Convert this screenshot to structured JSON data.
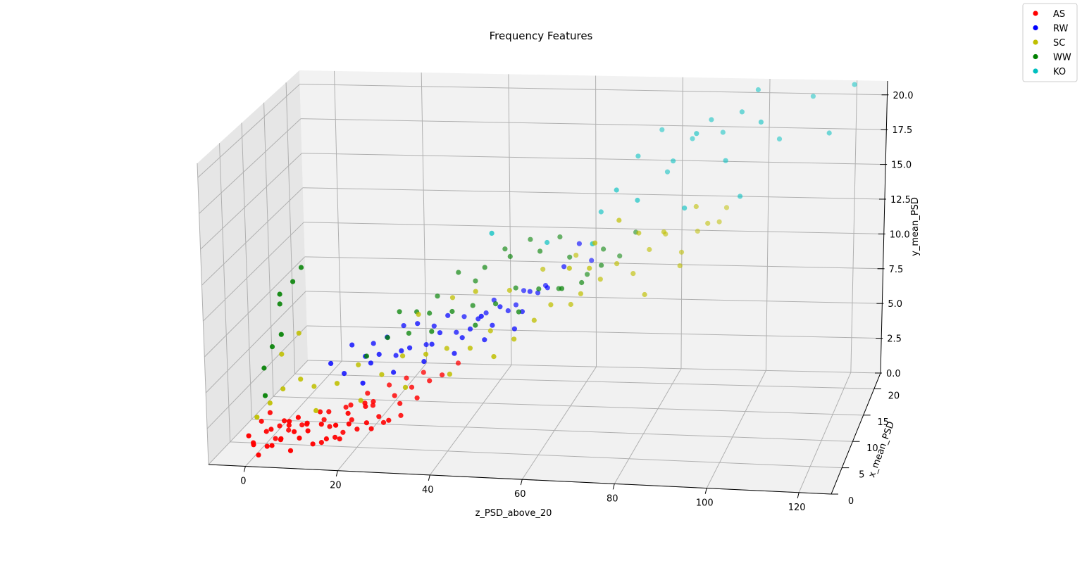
{
  "chart_data": {
    "type": "scatter",
    "title": "Frequency Features",
    "xlabel": "z_PSD_above_20",
    "ylabel": "x_mean_PSD",
    "zlabel": "y_mean_PSD",
    "x_ticks": [
      "0",
      "20",
      "40",
      "60",
      "80",
      "100",
      "120"
    ],
    "y_ticks": [
      "0",
      "5",
      "10",
      "15",
      "20"
    ],
    "z_ticks": [
      "0.0",
      "2.5",
      "5.0",
      "7.5",
      "10.0",
      "12.5",
      "15.0",
      "17.5",
      "20.0"
    ],
    "xlim": [
      -8,
      127
    ],
    "ylim": [
      0,
      23
    ],
    "zlim": [
      0,
      21
    ],
    "grid": true,
    "legend_position": "top-right",
    "series": [
      {
        "name": "AS",
        "color": "#ff0000",
        "points": [
          [
            1,
            1,
            1.2
          ],
          [
            2,
            3,
            1.5
          ],
          [
            3,
            2,
            0.8
          ],
          [
            4,
            4,
            1.6
          ],
          [
            5,
            1,
            1.2
          ],
          [
            6,
            2,
            1.3
          ],
          [
            7,
            3,
            2.0
          ],
          [
            8,
            5,
            1.4
          ],
          [
            9,
            1,
            0.9
          ],
          [
            10,
            4,
            1.8
          ],
          [
            11,
            3,
            2.2
          ],
          [
            12,
            6,
            1.5
          ],
          [
            13,
            2,
            1.1
          ],
          [
            14,
            5,
            2.4
          ],
          [
            15,
            4,
            1.7
          ],
          [
            16,
            7,
            2.1
          ],
          [
            17,
            3,
            1.3
          ],
          [
            18,
            6,
            2.6
          ],
          [
            19,
            5,
            1.9
          ],
          [
            20,
            8,
            2.8
          ],
          [
            21,
            4,
            1.6
          ],
          [
            22,
            7,
            2.3
          ],
          [
            23,
            6,
            2.9
          ],
          [
            24,
            9,
            3.1
          ],
          [
            25,
            5,
            2.2
          ],
          [
            26,
            8,
            2.7
          ],
          [
            27,
            10,
            3.3
          ],
          [
            28,
            7,
            2.5
          ],
          [
            29,
            9,
            3.0
          ],
          [
            30,
            11,
            3.4
          ],
          [
            3,
            4,
            0.7
          ],
          [
            6,
            3,
            2.3
          ],
          [
            9,
            2,
            1.9
          ],
          [
            12,
            2,
            2.0
          ],
          [
            15,
            2,
            2.5
          ],
          [
            18,
            3,
            1.2
          ],
          [
            21,
            2,
            2.6
          ],
          [
            24,
            3,
            2.4
          ],
          [
            2,
            1,
            0.5
          ],
          [
            5,
            5,
            1.0
          ],
          [
            8,
            2,
            2.6
          ],
          [
            11,
            1,
            1.8
          ],
          [
            14,
            3,
            0.9
          ],
          [
            17,
            5,
            1.0
          ],
          [
            20,
            3,
            3.0
          ],
          [
            23,
            4,
            3.2
          ],
          [
            26,
            5,
            1.8
          ],
          [
            29,
            6,
            2.0
          ],
          [
            1,
            3,
            2.2
          ],
          [
            4,
            2,
            2.0
          ],
          [
            7,
            1,
            1.7
          ],
          [
            10,
            2,
            2.9
          ],
          [
            13,
            4,
            2.7
          ],
          [
            16,
            2,
            1.5
          ],
          [
            19,
            1,
            2.8
          ],
          [
            22,
            5,
            3.1
          ],
          [
            25,
            3,
            2.0
          ],
          [
            28,
            4,
            2.3
          ],
          [
            31,
            8,
            2.6
          ],
          [
            33,
            9,
            3.5
          ],
          [
            0,
            2,
            1.0
          ],
          [
            0,
            1,
            1.8
          ],
          [
            2,
            4,
            2.5
          ],
          [
            35,
            10,
            3.6
          ],
          [
            37,
            12,
            3.8
          ]
        ]
      },
      {
        "name": "RW",
        "color": "#0000ff",
        "points": [
          [
            12,
            8,
            4.8
          ],
          [
            15,
            10,
            5.5
          ],
          [
            18,
            12,
            5.0
          ],
          [
            20,
            9,
            4.6
          ],
          [
            22,
            11,
            5.8
          ],
          [
            24,
            13,
            6.0
          ],
          [
            26,
            10,
            5.2
          ],
          [
            28,
            12,
            6.5
          ],
          [
            30,
            14,
            5.7
          ],
          [
            32,
            11,
            5.4
          ],
          [
            34,
            13,
            6.8
          ],
          [
            36,
            15,
            6.1
          ],
          [
            38,
            12,
            5.6
          ],
          [
            40,
            14,
            6.3
          ],
          [
            42,
            16,
            7.0
          ],
          [
            44,
            13,
            6.2
          ],
          [
            46,
            15,
            6.6
          ],
          [
            48,
            17,
            7.4
          ],
          [
            50,
            14,
            6.9
          ],
          [
            52,
            16,
            7.6
          ],
          [
            14,
            9,
            3.8
          ],
          [
            17,
            11,
            4.4
          ],
          [
            19,
            8,
            3.5
          ],
          [
            21,
            10,
            4.9
          ],
          [
            23,
            12,
            4.2
          ],
          [
            25,
            9,
            4.0
          ],
          [
            27,
            11,
            5.1
          ],
          [
            29,
            13,
            4.7
          ],
          [
            31,
            10,
            4.5
          ],
          [
            33,
            12,
            5.9
          ],
          [
            35,
            14,
            5.3
          ],
          [
            37,
            11,
            4.8
          ],
          [
            39,
            13,
            5.9
          ],
          [
            41,
            15,
            6.4
          ],
          [
            43,
            12,
            5.5
          ],
          [
            45,
            14,
            7.2
          ],
          [
            47,
            16,
            6.7
          ],
          [
            49,
            13,
            6.0
          ],
          [
            51,
            15,
            8.0
          ],
          [
            53,
            17,
            7.8
          ],
          [
            60,
            18,
            10.5
          ],
          [
            62,
            19,
            9.0
          ],
          [
            58,
            16,
            9.5
          ],
          [
            55,
            15,
            8.3
          ],
          [
            44,
            10,
            7.8
          ]
        ]
      },
      {
        "name": "SC",
        "color": "#bfbf00",
        "points": [
          [
            1,
            2,
            2.8
          ],
          [
            3,
            3,
            3.5
          ],
          [
            5,
            4,
            4.2
          ],
          [
            8,
            5,
            4.6
          ],
          [
            10,
            6,
            3.8
          ],
          [
            13,
            3,
            3.1
          ],
          [
            16,
            5,
            4.4
          ],
          [
            19,
            7,
            5.1
          ],
          [
            22,
            4,
            3.6
          ],
          [
            25,
            6,
            4.8
          ],
          [
            28,
            8,
            5.5
          ],
          [
            31,
            5,
            4.3
          ],
          [
            34,
            7,
            6.0
          ],
          [
            37,
            9,
            5.8
          ],
          [
            40,
            6,
            5.0
          ],
          [
            43,
            8,
            6.2
          ],
          [
            46,
            10,
            6.8
          ],
          [
            49,
            7,
            6.0
          ],
          [
            52,
            9,
            6.6
          ],
          [
            55,
            11,
            7.3
          ],
          [
            58,
            12,
            8.1
          ],
          [
            61,
            14,
            7.5
          ],
          [
            64,
            13,
            8.6
          ],
          [
            67,
            15,
            9.0
          ],
          [
            70,
            16,
            9.8
          ],
          [
            73,
            17,
            8.8
          ],
          [
            76,
            18,
            10.2
          ],
          [
            79,
            19,
            11.0
          ],
          [
            82,
            20,
            9.4
          ],
          [
            85,
            21,
            10.6
          ],
          [
            88,
            20,
            11.5
          ],
          [
            91,
            22,
            12.0
          ],
          [
            68,
            12,
            12.5
          ],
          [
            72,
            14,
            13.5
          ],
          [
            75,
            16,
            12.0
          ],
          [
            80,
            17,
            11.8
          ],
          [
            86,
            19,
            13.0
          ],
          [
            90,
            21,
            11.3
          ],
          [
            63,
            11,
            11.0
          ],
          [
            66,
            13,
            10.4
          ],
          [
            30,
            10,
            7.8
          ],
          [
            36,
            12,
            8.4
          ],
          [
            42,
            11,
            9.2
          ],
          [
            48,
            13,
            8.7
          ],
          [
            54,
            15,
            9.6
          ],
          [
            60,
            17,
            10.0
          ],
          [
            77,
            15,
            8.0
          ],
          [
            83,
            18,
            9.1
          ],
          [
            4,
            5,
            6.3
          ],
          [
            7,
            6,
            7.5
          ]
        ]
      },
      {
        "name": "WW",
        "color": "#008000",
        "points": [
          [
            1,
            4,
            5.6
          ],
          [
            2,
            5,
            6.8
          ],
          [
            3,
            6,
            9.5
          ],
          [
            4,
            5,
            10.5
          ],
          [
            6,
            6,
            11.1
          ],
          [
            7,
            7,
            11.8
          ],
          [
            5,
            4,
            8.0
          ],
          [
            2,
            3,
            4.0
          ],
          [
            20,
            8,
            5.4
          ],
          [
            23,
            10,
            6.1
          ],
          [
            26,
            12,
            5.8
          ],
          [
            29,
            14,
            6.6
          ],
          [
            32,
            11,
            6.3
          ],
          [
            35,
            13,
            7.1
          ],
          [
            38,
            15,
            6.9
          ],
          [
            41,
            12,
            6.5
          ],
          [
            44,
            14,
            7.4
          ],
          [
            47,
            16,
            7.9
          ],
          [
            50,
            13,
            7.2
          ],
          [
            53,
            15,
            8.2
          ],
          [
            56,
            17,
            7.6
          ],
          [
            59,
            14,
            8.6
          ],
          [
            62,
            16,
            8.4
          ],
          [
            65,
            18,
            9.0
          ],
          [
            45,
            17,
            9.8
          ],
          [
            48,
            19,
            10.4
          ],
          [
            51,
            18,
            9.9
          ],
          [
            54,
            20,
            10.3
          ],
          [
            57,
            19,
            9.2
          ],
          [
            40,
            16,
            9.3
          ],
          [
            43,
            18,
            10.0
          ],
          [
            34,
            16,
            8.9
          ],
          [
            37,
            17,
            8.0
          ],
          [
            30,
            15,
            7.5
          ],
          [
            27,
            13,
            7.0
          ],
          [
            24,
            12,
            7.3
          ],
          [
            61,
            19,
            8.0
          ],
          [
            64,
            20,
            9.5
          ],
          [
            67,
            21,
            8.7
          ],
          [
            70,
            22,
            10.1
          ]
        ]
      },
      {
        "name": "KO",
        "color": "#00bfbf",
        "points": [
          [
            45,
            12,
            13.0
          ],
          [
            55,
            15,
            11.5
          ],
          [
            65,
            18,
            12.8
          ],
          [
            72,
            20,
            16.2
          ],
          [
            76,
            22,
            17.5
          ],
          [
            78,
            21,
            14.8
          ],
          [
            80,
            20,
            15.9
          ],
          [
            83,
            22,
            16.9
          ],
          [
            86,
            19,
            18.2
          ],
          [
            88,
            21,
            18.6
          ],
          [
            90,
            22,
            17.4
          ],
          [
            92,
            20,
            16.0
          ],
          [
            95,
            21,
            19.2
          ],
          [
            98,
            22,
            20.5
          ],
          [
            100,
            20,
            18.8
          ],
          [
            103,
            22,
            17.0
          ],
          [
            70,
            16,
            15.0
          ],
          [
            74,
            17,
            14.0
          ],
          [
            84,
            18,
            13.2
          ],
          [
            96,
            19,
            13.8
          ],
          [
            110,
            23,
            19.8
          ],
          [
            120,
            22,
            21.0
          ],
          [
            115,
            21,
            17.8
          ],
          [
            66,
            14,
            11.8
          ]
        ]
      }
    ]
  }
}
